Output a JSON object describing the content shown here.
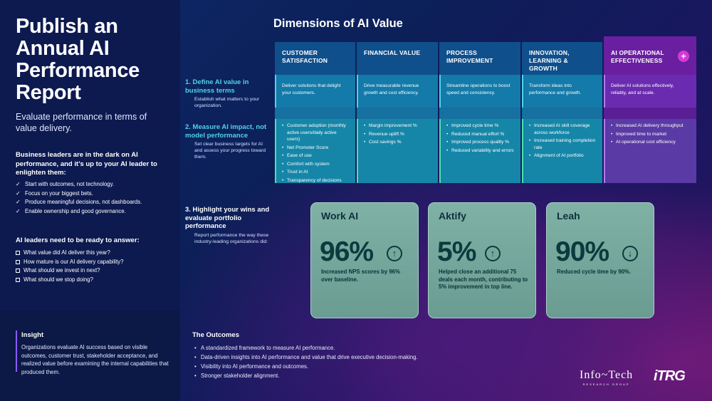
{
  "sidebar": {
    "title": "Publish an Annual AI Performance Report",
    "subtitle": "Evaluate performance in terms of value delivery.",
    "lead": "Business leaders are in the dark on AI performance, and it’s up to your AI leader to enlighten them:",
    "checklist": [
      "Start with outcomes, not technology.",
      "Focus on your biggest bets.",
      "Produce meaningful decisions, not dashboards.",
      "Enable ownership and good governance."
    ],
    "lead2": "AI leaders need to be ready to answer:",
    "questions": [
      "What value did AI deliver this year?",
      "How mature is our AI delivery capability?",
      "What should we invest in next?",
      "What should we stop doing?"
    ],
    "insight_title": "Insight",
    "insight_text": "Organizations evaluate AI success based on visible outcomes, customer trust, stakeholder acceptance, and realized value before examining the internal capabilities that produced them."
  },
  "dimensions": {
    "title": "Dimensions of AI Value",
    "columns": [
      {
        "header": "CUSTOMER SATISFACTION",
        "definition": "Deliver solutions that delight your customers.",
        "metrics": [
          "Customer adoption (monthly active users/daily active users)",
          "Net Promoter Score",
          "Ease of use",
          "Comfort with system",
          "Trust in AI",
          "Transparency of decisions"
        ]
      },
      {
        "header": "FINANCIAL VALUE",
        "definition": "Drive measurable revenue growth and cost efficiency.",
        "metrics": [
          "Margin improvement %",
          "Revenue uplift %",
          "Cost savings %"
        ]
      },
      {
        "header": "PROCESS IMPROVEMENT",
        "definition": "Streamline operations to boost speed and consistency.",
        "metrics": [
          "Improved cycle time %",
          "Reduced manual effort %",
          "Improved process quality %",
          "Reduced variability and errors"
        ]
      },
      {
        "header": "INNOVATION, LEARNING & GROWTH",
        "definition": "Transform ideas into performance and growth.",
        "metrics": [
          "Increased AI skill coverage across workforce",
          "Increased training completion rate",
          "Alignment of AI portfolio"
        ]
      },
      {
        "header": "AI OPERATIONAL EFFECTIVENESS",
        "definition": "Deliver AI solutions effectively, reliably, and at scale.",
        "metrics": [
          "Increased AI delivery throughput",
          "Improved time to market",
          "AI operational cost efficiency"
        ]
      }
    ],
    "plus_icon": "+"
  },
  "steps": [
    {
      "title": "1. Define AI value in business terms",
      "desc": "Establish what matters to your organization."
    },
    {
      "title": "2. Measure AI impact, not model performance",
      "desc": "Set clear business targets for AI and assess your progress toward them."
    },
    {
      "title": "3. Highlight your wins and evaluate portfolio performance",
      "desc": "Report performance the way these industry-leading organizations did:"
    }
  ],
  "cases": [
    {
      "name": "Work AI",
      "value": "96%",
      "direction": "up",
      "desc": "Increased NPS scores by 96% over baseline."
    },
    {
      "name": "Aktify",
      "value": "5%",
      "direction": "up",
      "desc": "Helped close an additional 75 deals each month, contributing to 5% improvement in top line."
    },
    {
      "name": "Leah",
      "value": "90%",
      "direction": "down",
      "desc": "Reduced cycle time by 90%."
    }
  ],
  "outcomes": {
    "title": "The Outcomes",
    "items": [
      "A standardized framework to measure AI performance.",
      "Data-driven insights into AI performance and value that drive executive decision-making.",
      "Visibility into AI performance and outcomes.",
      "Stronger stakeholder alignment."
    ]
  },
  "logos": {
    "infotech": "Info~Tech",
    "infotech_sub": "RESEARCH GROUP",
    "itrg": "iTRG"
  },
  "colors": {
    "accent_cyan": "#4fd3e8",
    "accent_green": "#4ee0a8",
    "accent_purple": "#8a5cf6",
    "case_card": "#7fb1a5"
  }
}
